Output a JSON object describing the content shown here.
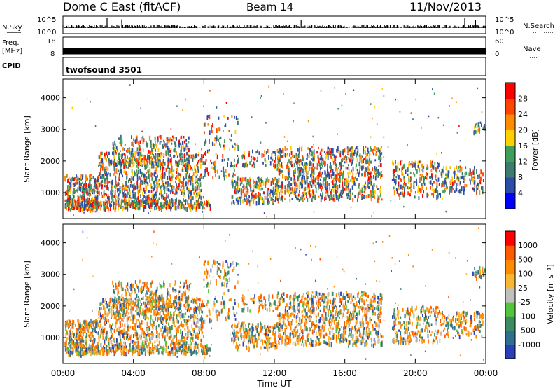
{
  "header": {
    "title": "Dome C East (fitACF)",
    "beam": "Beam 14",
    "date": "11/Nov/2013"
  },
  "strips": {
    "nsky_label": "N.Sky",
    "nsky_ticks": [
      "10^5",
      "10^0"
    ],
    "nsearch_label": "N.Search",
    "nsearch_ticks": [
      "10^5",
      "10^0"
    ],
    "freq_label": "Freq.",
    "freq_unit": "[MHz]",
    "freq_ticks": [
      "18",
      "8"
    ],
    "nave_label": "Nave",
    "nave_ticks": [
      "60",
      "0"
    ],
    "cpid_label": "CPID",
    "cpid_value": "twofsound 3501"
  },
  "chart_data": [
    {
      "type": "heatmap",
      "name": "Power",
      "ylabel": "Slant Range [km]",
      "ylim": [
        180,
        4590
      ],
      "yticks": [
        "1000",
        "2000",
        "3000",
        "4000"
      ],
      "colorbar_label": "Power [dB]",
      "colorbar_ticks": [
        "28",
        "24",
        "20",
        "16",
        "12",
        "8",
        "4"
      ],
      "colors": [
        "#0000ff",
        "#2b4ca8",
        "#3e7b6f",
        "#3f9f5a",
        "#ffd000",
        "#ff8c00",
        "#ff4500",
        "#ff0000"
      ]
    },
    {
      "type": "heatmap",
      "name": "Velocity",
      "ylabel": "Slant Range [km]",
      "ylim": [
        180,
        4590
      ],
      "yticks": [
        "1000",
        "2000",
        "3000",
        "4000"
      ],
      "colorbar_label": "Velocity [m s⁻¹]",
      "colorbar_ticks": [
        "1000",
        "500",
        "100",
        "25",
        "-25",
        "-100",
        "-500",
        "-1000"
      ],
      "colors": [
        "#2940b8",
        "#2f6f92",
        "#3d8a63",
        "#53c43c",
        "#c0c0c0",
        "#f7b733",
        "#ff8c00",
        "#ff5a00",
        "#ff0000"
      ]
    }
  ],
  "xaxis": {
    "label": "Time UT",
    "ticks": [
      "00:00",
      "04:00",
      "08:00",
      "12:00",
      "16:00",
      "20:00",
      "00:00"
    ]
  }
}
